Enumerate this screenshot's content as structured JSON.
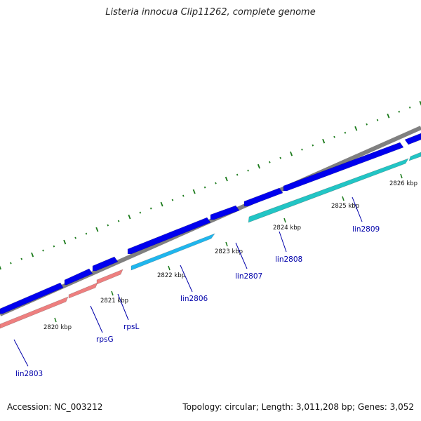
{
  "title": "Listeria innocua Clip11262, complete genome",
  "footer": {
    "accession": "Accession: NC_003212",
    "summary": "Topology: circular; Length: 3,011,208 bp; Genes: 3,052"
  },
  "colors": {
    "backbone": "#808080",
    "cds_forward": "#0000ee",
    "cds_reverse_rrna": "#ee7f7f",
    "cds_reverse_light": "#1fb6ee",
    "cds_reverse_teal": "#22c5c5",
    "ticks": "#1a7a1a",
    "gene_label": "#0000aa"
  },
  "kbp_ticks": [
    "2820 kbp",
    "2821 kbp",
    "2822 kbp",
    "2823 kbp",
    "2824 kbp",
    "2825 kbp",
    "2826 kbp"
  ],
  "gene_labels": [
    "lin2803",
    "rpsG",
    "rpsL",
    "lin2806",
    "lin2807",
    "lin2808",
    "lin2809"
  ]
}
